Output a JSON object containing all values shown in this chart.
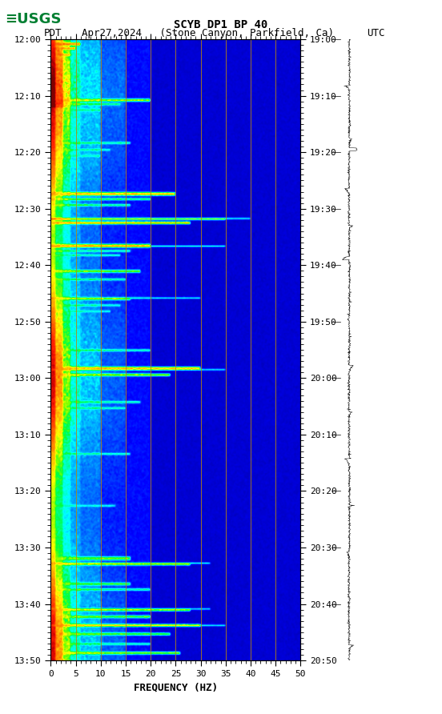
{
  "title_line1": "SCYB DP1 BP 40",
  "title_line2_left": "PDT",
  "title_line2_mid": "Apr27,2024   (Stone Canyon, Parkfield, Ca)",
  "title_line2_right": "UTC",
  "xlabel": "FREQUENCY (HZ)",
  "freq_min": 0,
  "freq_max": 50,
  "freq_ticks": [
    0,
    5,
    10,
    15,
    20,
    25,
    30,
    35,
    40,
    45,
    50
  ],
  "time_left_labels": [
    "12:00",
    "12:10",
    "12:20",
    "12:30",
    "12:40",
    "12:50",
    "13:00",
    "13:10",
    "13:20",
    "13:30",
    "13:40",
    "13:50"
  ],
  "time_right_labels": [
    "19:00",
    "19:10",
    "19:20",
    "19:30",
    "19:40",
    "19:50",
    "20:00",
    "20:10",
    "20:20",
    "20:30",
    "20:40",
    "20:50"
  ],
  "n_time_steps": 720,
  "n_freq_steps": 500,
  "vertical_line_freqs": [
    5,
    10,
    15,
    20,
    25,
    30,
    35,
    40,
    45
  ],
  "vertical_line_color": "#b8860b",
  "usgs_logo_color": "#007f32"
}
